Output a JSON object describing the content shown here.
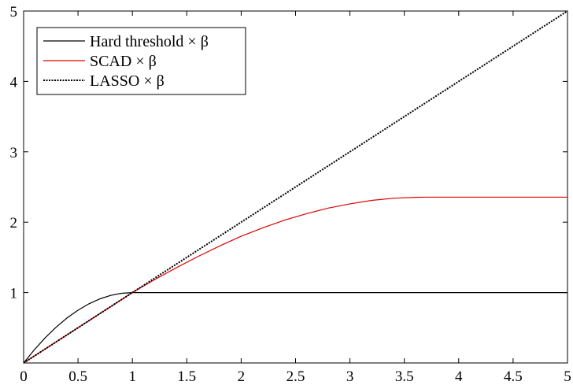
{
  "chart_data": {
    "type": "line",
    "xlim": [
      0,
      5
    ],
    "ylim": [
      0,
      5
    ],
    "grid": false,
    "legend_position": "top-left",
    "xticks": [
      0,
      0.5,
      1,
      1.5,
      2,
      2.5,
      3,
      3.5,
      4,
      4.5,
      5
    ],
    "xtick_labels": [
      "0",
      "0.5",
      "1",
      "1.5",
      "2",
      "2.5",
      "3",
      "3.5",
      "4",
      "4.5",
      "5"
    ],
    "yticks": [
      1,
      2,
      3,
      4,
      5
    ],
    "ytick_labels": [
      "1",
      "2",
      "3",
      "4",
      "5"
    ],
    "series": [
      {
        "name": "Hard threshold × β",
        "color": "#000000",
        "style": "solid",
        "x": [
          0,
          0.1,
          0.2,
          0.3,
          0.4,
          0.5,
          0.6,
          0.7,
          0.8,
          0.9,
          1.0,
          1.5,
          2,
          2.5,
          3,
          3.5,
          4,
          4.5,
          5
        ],
        "y": [
          0,
          0.19,
          0.36,
          0.51,
          0.64,
          0.75,
          0.84,
          0.91,
          0.96,
          0.99,
          1.0,
          1.0,
          1.0,
          1.0,
          1.0,
          1.0,
          1.0,
          1.0,
          1.0
        ]
      },
      {
        "name": "SCAD × β",
        "color": "#e00000",
        "style": "solid",
        "x": [
          0,
          0.5,
          1.0,
          1.2,
          1.4,
          1.6,
          1.8,
          2.0,
          2.2,
          2.4,
          2.6,
          2.8,
          3.0,
          3.2,
          3.4,
          3.6,
          3.7,
          4.0,
          4.5,
          5.0
        ],
        "y": [
          0,
          0.5,
          1.0,
          1.18,
          1.35,
          1.51,
          1.66,
          1.8,
          1.92,
          2.03,
          2.12,
          2.2,
          2.26,
          2.31,
          2.34,
          2.353,
          2.355,
          2.355,
          2.355,
          2.355
        ]
      },
      {
        "name": "LASSO × β",
        "color": "#000000",
        "style": "dotted",
        "x": [
          0,
          5
        ],
        "y": [
          0,
          5
        ]
      }
    ]
  }
}
